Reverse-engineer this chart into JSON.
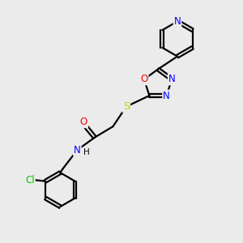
{
  "bg_color": "#ebebeb",
  "line_color": "#000000",
  "bond_width": 1.6,
  "atom_colors": {
    "N": "#0000ff",
    "O": "#ff0000",
    "S": "#cccc00",
    "Cl": "#00cc00",
    "C": "#000000",
    "H": "#000000"
  },
  "font_size": 8.5,
  "fig_size": [
    3.0,
    3.0
  ],
  "dpi": 100
}
